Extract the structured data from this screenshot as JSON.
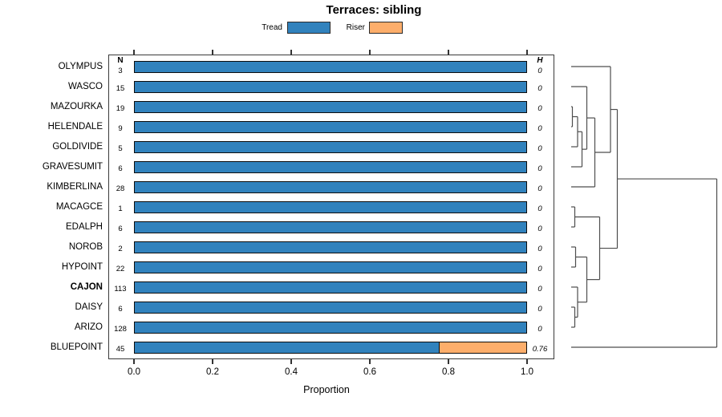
{
  "title": "Terraces: sibling",
  "legend": [
    {
      "label": "Tread",
      "color": "#3182bd"
    },
    {
      "label": "Riser",
      "color": "#fdae6b"
    }
  ],
  "columns": {
    "n_header": "N",
    "h_header": "H"
  },
  "axis": {
    "label": "Proportion",
    "ticks": [
      "0.0",
      "0.2",
      "0.4",
      "0.6",
      "0.8",
      "1.0"
    ],
    "range": [
      0,
      1
    ]
  },
  "chart_data": {
    "type": "bar",
    "orientation": "horizontal-stacked",
    "title": "Terraces: sibling",
    "xlabel": "Proportion",
    "xlim": [
      0,
      1
    ],
    "categories": [
      "OLYMPUS",
      "WASCO",
      "MAZOURKA",
      "HELENDALE",
      "GOLDIVIDE",
      "GRAVESUMIT",
      "KIMBERLINA",
      "MACAGCE",
      "EDALPH",
      "NOROB",
      "HYPOINT",
      "CAJON",
      "DAISY",
      "ARIZO",
      "BLUEPOINT"
    ],
    "emphasized_category": "CAJON",
    "N": [
      3,
      15,
      19,
      9,
      5,
      6,
      28,
      1,
      6,
      2,
      22,
      113,
      6,
      128,
      45
    ],
    "H": [
      "0",
      "0",
      "0",
      "0",
      "0",
      "0",
      "0",
      "0",
      "0",
      "0",
      "0",
      "0",
      "0",
      "0",
      "0.76"
    ],
    "series": [
      {
        "name": "Tread",
        "color": "#3182bd",
        "values": [
          1,
          1,
          1,
          1,
          1,
          1,
          1,
          1,
          1,
          1,
          1,
          1,
          1,
          1,
          0.78
        ]
      },
      {
        "name": "Riser",
        "color": "#fdae6b",
        "values": [
          0,
          0,
          0,
          0,
          0,
          0,
          0,
          0,
          0,
          0,
          0,
          0,
          0,
          0,
          0.22
        ]
      }
    ]
  },
  "dendrogram": {
    "note": "segments as [h1,row1,h2,row2]; h = height offset from leaf baseline, row = leaf index (fractional = internal node midpoint)",
    "segments": [
      [
        0,
        0,
        49,
        0
      ],
      [
        0,
        1,
        19.5,
        1
      ],
      [
        0,
        2,
        1.5,
        2
      ],
      [
        0,
        3,
        1.5,
        3
      ],
      [
        0,
        4,
        8,
        4
      ],
      [
        0,
        5,
        13.5,
        5
      ],
      [
        0,
        6,
        29.5,
        6
      ],
      [
        0,
        7,
        4.5,
        7
      ],
      [
        0,
        8,
        4.5,
        8
      ],
      [
        0,
        9,
        5.5,
        9
      ],
      [
        0,
        10,
        5.5,
        10
      ],
      [
        0,
        11,
        8,
        11
      ],
      [
        0,
        12,
        4.5,
        12
      ],
      [
        0,
        13,
        4.5,
        13
      ],
      [
        0,
        14,
        181.5,
        14
      ],
      [
        1.5,
        2,
        1.5,
        3
      ],
      [
        1.5,
        2.5,
        8,
        2.5
      ],
      [
        8,
        2.5,
        8,
        4
      ],
      [
        8,
        3.25,
        13.5,
        3.25
      ],
      [
        13.5,
        3.25,
        13.5,
        5
      ],
      [
        13.5,
        4.125,
        19.5,
        4.125
      ],
      [
        19.5,
        1,
        19.5,
        4.125
      ],
      [
        19.5,
        2.5625,
        29.5,
        2.5625
      ],
      [
        29.5,
        2.5625,
        29.5,
        6
      ],
      [
        29.5,
        4.2813,
        49,
        4.2813
      ],
      [
        49,
        0,
        49,
        4.2813
      ],
      [
        49,
        2.1406,
        57.5,
        2.1406
      ],
      [
        4.5,
        7,
        4.5,
        8
      ],
      [
        4.5,
        7.5,
        35.5,
        7.5
      ],
      [
        5.5,
        9,
        5.5,
        10
      ],
      [
        5.5,
        9.5,
        19.5,
        9.5
      ],
      [
        4.5,
        12,
        4.5,
        13
      ],
      [
        4.5,
        12.5,
        8,
        12.5
      ],
      [
        8,
        11,
        8,
        12.5
      ],
      [
        8,
        11.75,
        19.5,
        11.75
      ],
      [
        19.5,
        9.5,
        19.5,
        11.75
      ],
      [
        19.5,
        10.625,
        35.5,
        10.625
      ],
      [
        35.5,
        7.5,
        35.5,
        10.625
      ],
      [
        35.5,
        9.0625,
        57.5,
        9.0625
      ],
      [
        57.5,
        2.1406,
        57.5,
        9.0625
      ],
      [
        57.5,
        5.6016,
        181.5,
        5.6016
      ],
      [
        181.5,
        5.6016,
        181.5,
        14
      ]
    ]
  }
}
